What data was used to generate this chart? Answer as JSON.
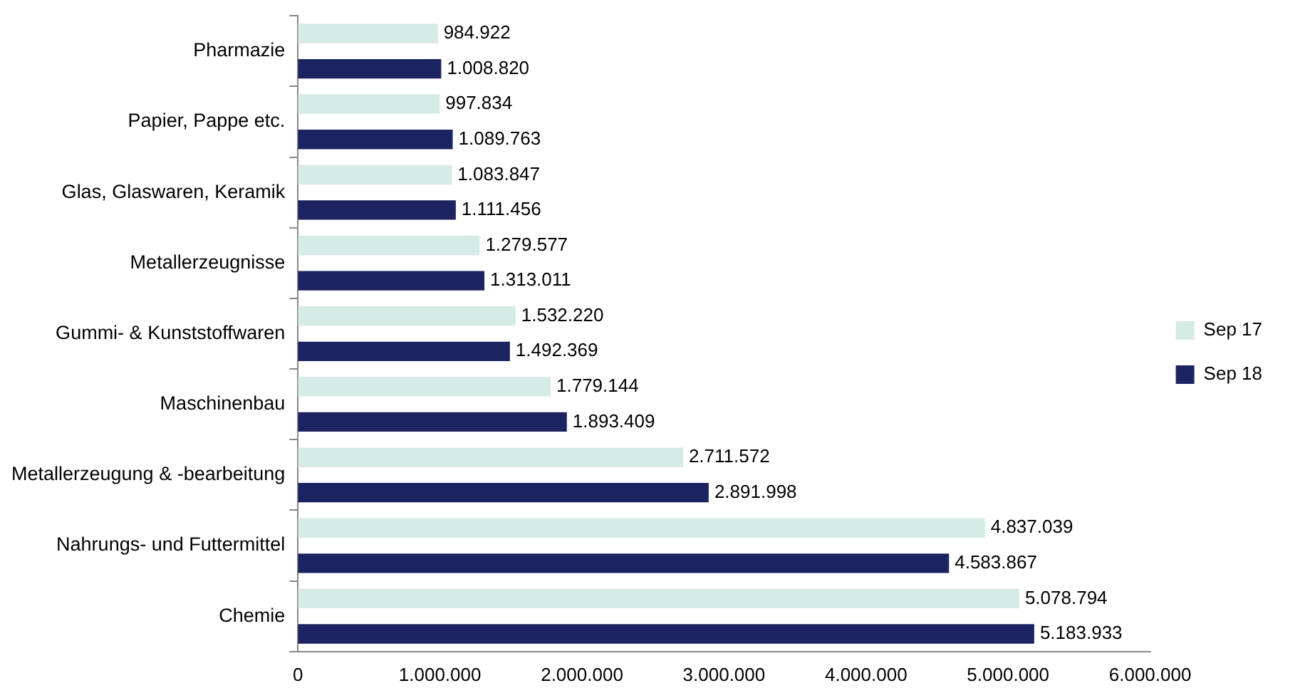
{
  "chart_data": {
    "type": "bar",
    "orientation": "horizontal",
    "categories": [
      "Pharmazie",
      "Papier, Pappe etc.",
      "Glas, Glaswaren, Keramik",
      "Metallerzeugnisse",
      "Gummi- & Kunststoffwaren",
      "Maschinenbau",
      "Metallerzeugung & -bearbeitung",
      "Nahrungs- und Futtermittel",
      "Chemie"
    ],
    "series": [
      {
        "name": "Sep 17",
        "color": "#d4ebe6",
        "values": [
          984922,
          997834,
          1083847,
          1279577,
          1532220,
          1779144,
          2711572,
          4837039,
          5078794
        ],
        "value_labels": [
          "984.922",
          "997.834",
          "1.083.847",
          "1.279.577",
          "1.532.220",
          "1.779.144",
          "2.711.572",
          "4.837.039",
          "5.078.794"
        ]
      },
      {
        "name": "Sep 18",
        "color": "#1c2361",
        "values": [
          1008820,
          1089763,
          1111456,
          1313011,
          1492369,
          1893409,
          2891998,
          4583867,
          5183933
        ],
        "value_labels": [
          "1.008.820",
          "1.089.763",
          "1.111.456",
          "1.313.011",
          "1.492.369",
          "1.893.409",
          "2.891.998",
          "4.583.867",
          "5.183.933"
        ]
      }
    ],
    "xlim": [
      0,
      6000000
    ],
    "xticks": [
      0,
      {
        "value": 1000000,
        "label": "1.000.000"
      },
      {
        "value": 2000000,
        "label": "2.000.000"
      },
      {
        "value": 3000000,
        "label": "3.000.000"
      },
      {
        "value": 4000000,
        "label": "4.000.000"
      },
      {
        "value": 5000000,
        "label": "5.000.000"
      },
      {
        "value": 6000000,
        "label": "6.000.000"
      }
    ],
    "grid": false,
    "legend": "right"
  }
}
